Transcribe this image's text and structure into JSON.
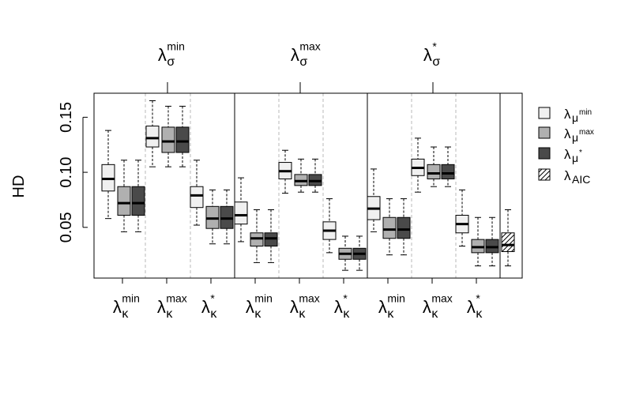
{
  "chart_data": {
    "type": "box",
    "ylabel": "HD",
    "yticks": [
      0.05,
      0.1,
      0.15
    ],
    "ytick_labels": [
      "0.05",
      "0.10",
      "0.15"
    ],
    "ylim": [
      0.005,
      0.172
    ],
    "top_groups": [
      {
        "base": "λ",
        "sub": "σ",
        "sup": "min"
      },
      {
        "base": "λ",
        "sub": "σ",
        "sup": "max"
      },
      {
        "base": "λ",
        "sub": "σ",
        "sup": "*"
      }
    ],
    "bottom_groups": [
      {
        "base": "λ",
        "sub": "κ",
        "sup": "min"
      },
      {
        "base": "λ",
        "sub": "κ",
        "sup": "max"
      },
      {
        "base": "λ",
        "sub": "κ",
        "sup": "*"
      }
    ],
    "legend": {
      "position": "right",
      "entries": [
        {
          "base": "λ",
          "sub": "μ",
          "subsup": "min",
          "fill": "#f0f0f0",
          "hatch": false
        },
        {
          "base": "λ",
          "sub": "μ",
          "subsup": "max",
          "fill": "#b0b0b0",
          "hatch": false
        },
        {
          "base": "λ",
          "sub": "μ",
          "subsup": "*",
          "fill": "#4a4a4a",
          "hatch": false
        },
        {
          "base": "λ",
          "sub": "AIC",
          "subsup": "",
          "fill": "#ffffff",
          "hatch": true
        }
      ]
    },
    "series": [
      {
        "key": "mu_min",
        "boxes": [
          {
            "sigma": 0,
            "kappa": 0,
            "whislo": 0.058,
            "q1": 0.083,
            "med": 0.094,
            "q3": 0.107,
            "whishi": 0.138
          },
          {
            "sigma": 0,
            "kappa": 1,
            "whislo": 0.105,
            "q1": 0.123,
            "med": 0.131,
            "q3": 0.142,
            "whishi": 0.165
          },
          {
            "sigma": 0,
            "kappa": 2,
            "whislo": 0.052,
            "q1": 0.068,
            "med": 0.079,
            "q3": 0.087,
            "whishi": 0.111
          },
          {
            "sigma": 1,
            "kappa": 0,
            "whislo": 0.037,
            "q1": 0.053,
            "med": 0.061,
            "q3": 0.073,
            "whishi": 0.095
          },
          {
            "sigma": 1,
            "kappa": 1,
            "whislo": 0.081,
            "q1": 0.094,
            "med": 0.101,
            "q3": 0.109,
            "whishi": 0.12
          },
          {
            "sigma": 1,
            "kappa": 2,
            "whislo": 0.027,
            "q1": 0.039,
            "med": 0.047,
            "q3": 0.055,
            "whishi": 0.076
          },
          {
            "sigma": 2,
            "kappa": 0,
            "whislo": 0.046,
            "q1": 0.057,
            "med": 0.067,
            "q3": 0.078,
            "whishi": 0.103
          },
          {
            "sigma": 2,
            "kappa": 1,
            "whislo": 0.082,
            "q1": 0.097,
            "med": 0.104,
            "q3": 0.112,
            "whishi": 0.131
          },
          {
            "sigma": 2,
            "kappa": 2,
            "whislo": 0.033,
            "q1": 0.045,
            "med": 0.053,
            "q3": 0.061,
            "whishi": 0.084
          }
        ]
      },
      {
        "key": "mu_max",
        "boxes": [
          {
            "sigma": 0,
            "kappa": 0,
            "whislo": 0.046,
            "q1": 0.061,
            "med": 0.072,
            "q3": 0.087,
            "whishi": 0.111
          },
          {
            "sigma": 0,
            "kappa": 1,
            "whislo": 0.105,
            "q1": 0.118,
            "med": 0.128,
            "q3": 0.141,
            "whishi": 0.16
          },
          {
            "sigma": 0,
            "kappa": 2,
            "whislo": 0.035,
            "q1": 0.049,
            "med": 0.058,
            "q3": 0.069,
            "whishi": 0.084
          },
          {
            "sigma": 1,
            "kappa": 0,
            "whislo": 0.018,
            "q1": 0.033,
            "med": 0.04,
            "q3": 0.045,
            "whishi": 0.066
          },
          {
            "sigma": 1,
            "kappa": 1,
            "whislo": 0.082,
            "q1": 0.088,
            "med": 0.092,
            "q3": 0.098,
            "whishi": 0.112
          },
          {
            "sigma": 1,
            "kappa": 2,
            "whislo": 0.011,
            "q1": 0.021,
            "med": 0.026,
            "q3": 0.031,
            "whishi": 0.042
          },
          {
            "sigma": 2,
            "kappa": 0,
            "whislo": 0.025,
            "q1": 0.04,
            "med": 0.048,
            "q3": 0.059,
            "whishi": 0.076
          },
          {
            "sigma": 2,
            "kappa": 1,
            "whislo": 0.087,
            "q1": 0.094,
            "med": 0.099,
            "q3": 0.107,
            "whishi": 0.123
          },
          {
            "sigma": 2,
            "kappa": 2,
            "whislo": 0.015,
            "q1": 0.027,
            "med": 0.032,
            "q3": 0.039,
            "whishi": 0.059
          }
        ]
      },
      {
        "key": "mu_star",
        "boxes": [
          {
            "sigma": 0,
            "kappa": 0,
            "whislo": 0.046,
            "q1": 0.061,
            "med": 0.072,
            "q3": 0.087,
            "whishi": 0.111
          },
          {
            "sigma": 0,
            "kappa": 1,
            "whislo": 0.105,
            "q1": 0.118,
            "med": 0.128,
            "q3": 0.141,
            "whishi": 0.16
          },
          {
            "sigma": 0,
            "kappa": 2,
            "whislo": 0.035,
            "q1": 0.049,
            "med": 0.058,
            "q3": 0.069,
            "whishi": 0.084
          },
          {
            "sigma": 1,
            "kappa": 0,
            "whislo": 0.018,
            "q1": 0.033,
            "med": 0.04,
            "q3": 0.045,
            "whishi": 0.066
          },
          {
            "sigma": 1,
            "kappa": 1,
            "whislo": 0.082,
            "q1": 0.088,
            "med": 0.092,
            "q3": 0.098,
            "whishi": 0.112
          },
          {
            "sigma": 1,
            "kappa": 2,
            "whislo": 0.011,
            "q1": 0.021,
            "med": 0.026,
            "q3": 0.031,
            "whishi": 0.042
          },
          {
            "sigma": 2,
            "kappa": 0,
            "whislo": 0.025,
            "q1": 0.04,
            "med": 0.048,
            "q3": 0.059,
            "whishi": 0.076
          },
          {
            "sigma": 2,
            "kappa": 1,
            "whislo": 0.087,
            "q1": 0.094,
            "med": 0.099,
            "q3": 0.107,
            "whishi": 0.123
          },
          {
            "sigma": 2,
            "kappa": 2,
            "whislo": 0.015,
            "q1": 0.027,
            "med": 0.032,
            "q3": 0.039,
            "whishi": 0.059
          }
        ]
      },
      {
        "key": "aic",
        "boxes": [
          {
            "sigma": null,
            "kappa": null,
            "whislo": 0.015,
            "q1": 0.028,
            "med": 0.034,
            "q3": 0.045,
            "whishi": 0.066
          }
        ]
      }
    ]
  }
}
